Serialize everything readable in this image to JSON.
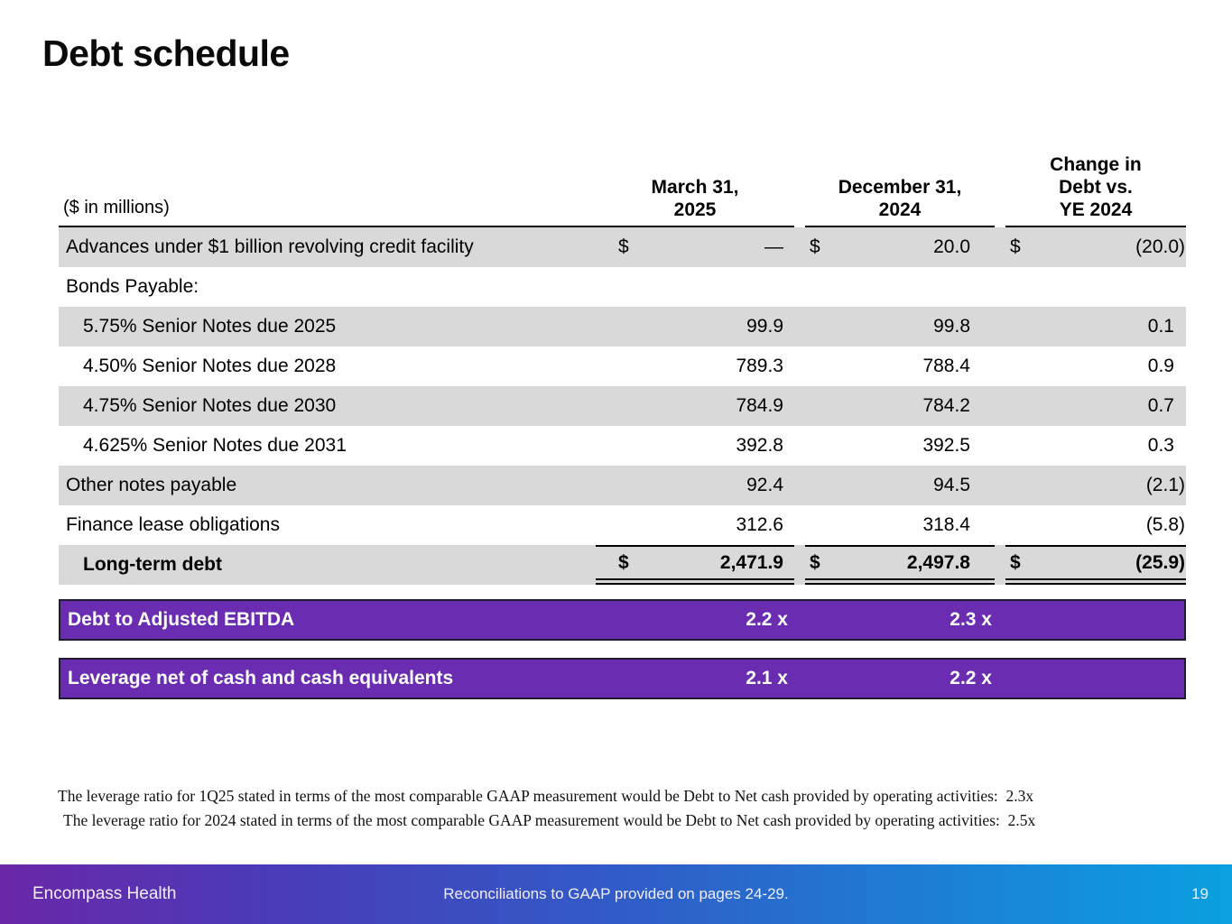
{
  "slide": {
    "title": "Debt schedule"
  },
  "table": {
    "unit_label": "($ in millions)",
    "headers": [
      {
        "lines": [
          "March 31,",
          "2025"
        ]
      },
      {
        "lines": [
          "December 31,",
          "2024"
        ]
      },
      {
        "lines": [
          "Change in",
          "Debt vs.",
          "YE 2024"
        ]
      }
    ],
    "rows": [
      {
        "label": "Advances under $1 billion revolving credit facility",
        "indent": 0,
        "bold": false,
        "shaded": true,
        "total": false,
        "cols": [
          {
            "d": "$",
            "v": "—"
          },
          {
            "d": "$",
            "v": "20.0"
          },
          {
            "d": "$",
            "v": "(20.0)"
          }
        ]
      },
      {
        "label": "Bonds Payable:",
        "indent": 0,
        "bold": false,
        "shaded": false,
        "total": false,
        "cols": [
          null,
          null,
          null
        ]
      },
      {
        "label": "5.75% Senior Notes due 2025",
        "indent": 1,
        "bold": false,
        "shaded": true,
        "total": false,
        "cols": [
          {
            "v": "99.9"
          },
          {
            "v": "99.8"
          },
          {
            "v": "0.1"
          }
        ]
      },
      {
        "label": "4.50% Senior Notes due 2028",
        "indent": 1,
        "bold": false,
        "shaded": false,
        "total": false,
        "cols": [
          {
            "v": "789.3"
          },
          {
            "v": "788.4"
          },
          {
            "v": "0.9"
          }
        ]
      },
      {
        "label": "4.75% Senior Notes due 2030",
        "indent": 1,
        "bold": false,
        "shaded": true,
        "total": false,
        "cols": [
          {
            "v": "784.9"
          },
          {
            "v": "784.2"
          },
          {
            "v": "0.7"
          }
        ]
      },
      {
        "label": "4.625% Senior Notes due 2031",
        "indent": 1,
        "bold": false,
        "shaded": false,
        "total": false,
        "cols": [
          {
            "v": "392.8"
          },
          {
            "v": "392.5"
          },
          {
            "v": "0.3"
          }
        ]
      },
      {
        "label": "Other notes payable",
        "indent": 0,
        "bold": false,
        "shaded": true,
        "total": false,
        "cols": [
          {
            "v": "92.4"
          },
          {
            "v": "94.5"
          },
          {
            "v": "(2.1)"
          }
        ]
      },
      {
        "label": "Finance lease obligations",
        "indent": 0,
        "bold": false,
        "shaded": false,
        "total": false,
        "cols": [
          {
            "v": "312.6"
          },
          {
            "v": "318.4"
          },
          {
            "v": "(5.8)"
          }
        ]
      },
      {
        "label": "Long-term debt",
        "indent": 1,
        "bold": true,
        "shaded": true,
        "total": true,
        "cols": [
          {
            "d": "$",
            "v": "2,471.9"
          },
          {
            "d": "$",
            "v": "2,497.8"
          },
          {
            "d": "$",
            "v": "(25.9)"
          }
        ]
      }
    ]
  },
  "ratio_bars": [
    {
      "label": "Debt to Adjusted EBITDA",
      "values": [
        "2.2 x",
        "2.3 x"
      ]
    },
    {
      "label": "Leverage net of cash and cash equivalents",
      "values": [
        "2.1 x",
        "2.2 x"
      ]
    }
  ],
  "footnotes": [
    "The leverage ratio for 1Q25 stated in terms of the most comparable GAAP measurement would be Debt to Net cash provided by operating activities:  2.3x",
    "The leverage ratio for 2024 stated in terms of the most comparable GAAP measurement would be Debt to Net cash provided by operating activities:  2.5x"
  ],
  "footer": {
    "brand": "Encompass Health",
    "center_text": "Reconciliations to GAAP provided on pages 24-29.",
    "page_number": "19"
  },
  "colors": {
    "accent_purple": "#6A2CB0",
    "row_shade": "#D9D9D9",
    "bar_border": "#201A33",
    "footer_gradient_start": "#6A28A8",
    "footer_gradient_mid": "#2F5EC8",
    "footer_gradient_end": "#0AA0E0"
  }
}
